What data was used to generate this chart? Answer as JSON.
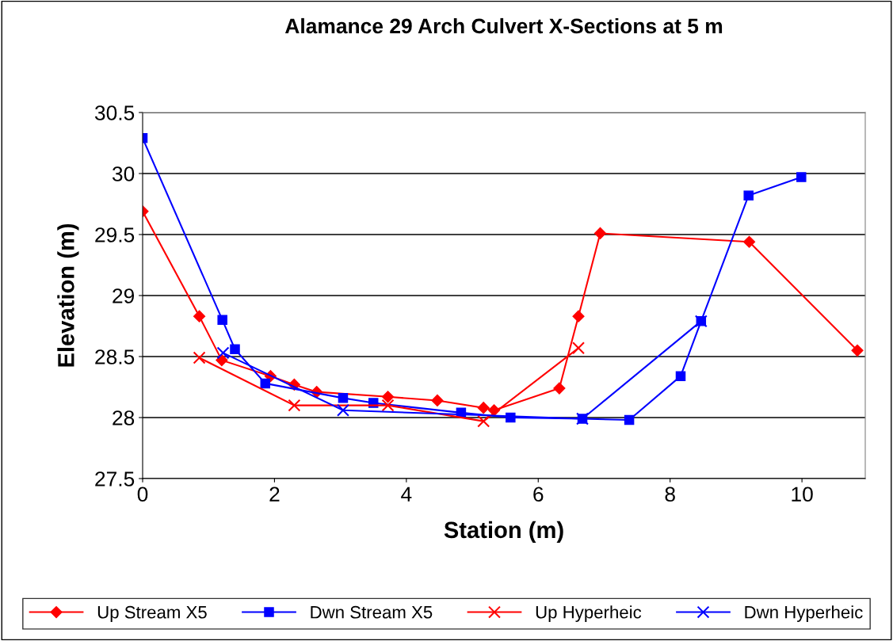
{
  "chart_data": {
    "type": "line",
    "title": "Alamance 29 Arch Culvert X-Sections at 5 m",
    "xlabel": "Station (m)",
    "ylabel": "Elevation (m)",
    "xlim": [
      0,
      10.96
    ],
    "xticks": [
      0,
      2,
      4,
      6,
      8,
      10
    ],
    "ylim": [
      27.5,
      30.5
    ],
    "yticks": [
      27.5,
      28,
      28.5,
      29,
      29.5,
      30,
      30.5
    ],
    "grid": "y",
    "legend": "bottom",
    "line_style": "solid",
    "series": [
      {
        "name": "Up Stream X5",
        "color": "#ff0000",
        "marker": "diamond",
        "x": [
          0,
          0.86,
          1.2,
          1.94,
          2.3,
          2.64,
          3.72,
          4.47,
          5.17,
          5.33,
          6.32,
          6.61,
          6.94,
          9.2,
          10.84
        ],
        "values": [
          29.69,
          28.83,
          28.47,
          28.34,
          28.27,
          28.21,
          28.17,
          28.14,
          28.08,
          28.06,
          28.24,
          28.83,
          29.51,
          29.44,
          28.55
        ]
      },
      {
        "name": "Dwn Stream X5",
        "color": "#0000ff",
        "marker": "square",
        "x": [
          0,
          1.21,
          1.4,
          1.86,
          3.04,
          3.5,
          4.83,
          5.58,
          6.67,
          7.38,
          8.16,
          8.47,
          9.19,
          9.99
        ],
        "values": [
          30.29,
          28.8,
          28.56,
          28.28,
          28.16,
          28.12,
          28.04,
          28.0,
          27.99,
          27.98,
          28.34,
          28.79,
          29.82,
          29.97
        ]
      },
      {
        "name": "Up Hyperheic",
        "color": "#ff0000",
        "marker": "cross",
        "x": [
          0.86,
          2.3,
          3.72,
          5.17,
          6.61
        ],
        "values": [
          28.49,
          28.1,
          28.1,
          27.97,
          28.57
        ]
      },
      {
        "name": "Dwn Hyperheic",
        "color": "#0000ff",
        "marker": "cross",
        "x": [
          1.22,
          3.04,
          6.67,
          8.47
        ],
        "values": [
          28.53,
          28.06,
          27.99,
          28.79
        ]
      }
    ]
  }
}
